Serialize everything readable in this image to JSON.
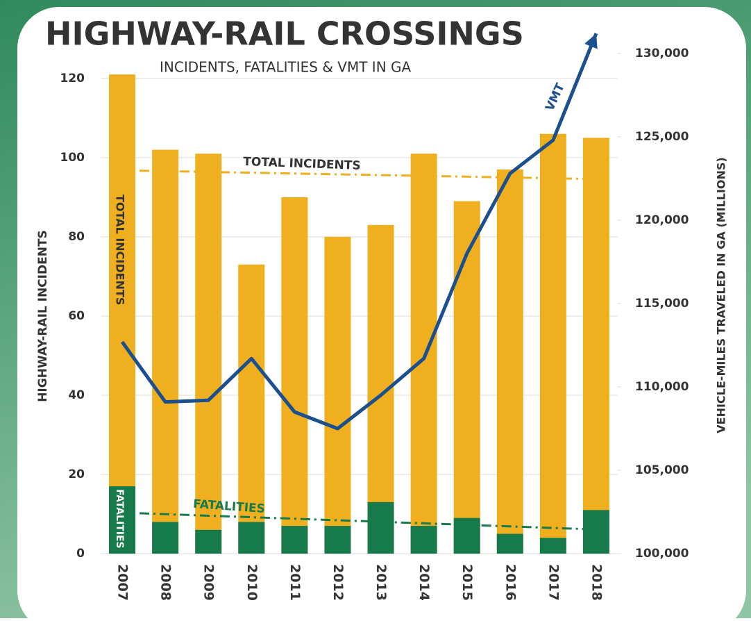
{
  "chart_data": {
    "type": "bar_line",
    "title": "HIGHWAY-RAIL CROSSINGS",
    "subtitle": "INCIDENTS, FATALITIES & VMT IN GA",
    "y_label": "HIGHWAY-RAIL INCIDENTS",
    "y2_label": "VEHICLE-MILES TRAVELED IN GA (MILLIONS)",
    "categories": [
      "2007",
      "2008",
      "2009",
      "2010",
      "2011",
      "2012",
      "2013",
      "2014",
      "2015",
      "2016",
      "2017",
      "2018"
    ],
    "series": [
      {
        "name": "TOTAL INCIDENTS",
        "color": "#efaf1f",
        "values": [
          121,
          102,
          101,
          73,
          90,
          80,
          83,
          101,
          89,
          97,
          106,
          105
        ]
      },
      {
        "name": "FATALITIES",
        "color": "#167a4b",
        "values": [
          17,
          8,
          6,
          8,
          7,
          7,
          13,
          7,
          9,
          5,
          4,
          11
        ]
      },
      {
        "name": "VMT",
        "color": "#1b4f8e",
        "axis": "y2",
        "values": [
          112700,
          109100,
          109200,
          111700,
          108500,
          107500,
          109500,
          111700,
          118000,
          122800,
          124800,
          131200
        ]
      }
    ],
    "trendlines": [
      {
        "label": "TOTAL INCIDENTS",
        "color": "#efaf1f",
        "values": [
          96.7,
          94.6
        ]
      },
      {
        "label": "FATALITIES",
        "color": "#167a4b",
        "values": [
          10.2,
          6.1
        ]
      }
    ],
    "ylim": [
      0,
      126.3
    ],
    "yticks": [
      0,
      20,
      40,
      60,
      80,
      100,
      120
    ],
    "y2lim": [
      100000,
      130000
    ],
    "y2ticks": [
      {
        "value": 100000,
        "label": "100,000"
      },
      {
        "value": 105000,
        "label": "105,000"
      },
      {
        "value": 110000,
        "label": "110,000"
      },
      {
        "value": 115000,
        "label": "115,000"
      },
      {
        "value": 120000,
        "label": "120,000"
      },
      {
        "value": 125000,
        "label": "125,000"
      },
      {
        "value": 130000,
        "label": "130,000"
      }
    ],
    "grid": true
  }
}
